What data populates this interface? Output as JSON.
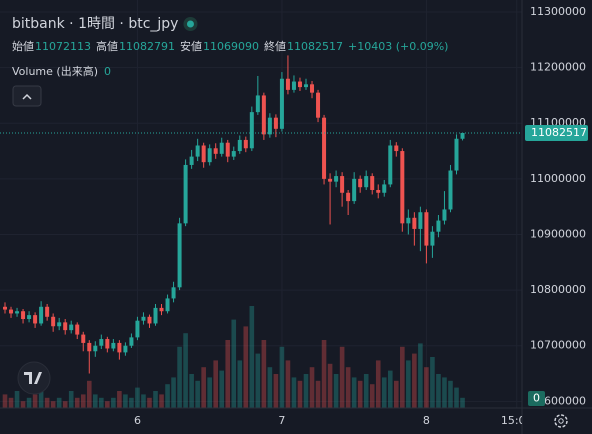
{
  "chart_data": {
    "type": "candlestick",
    "title": "bitbank · 1時間 · btc_jpy",
    "ohlc_labels": [
      "始値",
      "高値",
      "安値",
      "終値"
    ],
    "change_label": "+10403 (+0.09%)",
    "volume_label": "Volume (出来高)",
    "volume_value": 0,
    "up_color": "#26a69a",
    "down_color": "#ef5350",
    "grid": true,
    "ylim": [
      10588000,
      11321600
    ],
    "yticks": [
      10600000,
      10700000,
      10800000,
      10900000,
      11000000,
      11100000,
      11200000,
      11300000
    ],
    "categories": [
      null,
      null,
      null,
      null,
      null,
      null,
      null,
      null,
      null,
      null,
      null,
      null,
      null,
      null,
      null,
      null,
      null,
      null,
      null,
      null,
      null,
      null,
      "6",
      null,
      null,
      null,
      null,
      null,
      null,
      null,
      null,
      null,
      null,
      null,
      null,
      null,
      null,
      null,
      null,
      null,
      null,
      null,
      null,
      null,
      null,
      null,
      "7",
      null,
      null,
      null,
      null,
      null,
      null,
      null,
      null,
      null,
      null,
      null,
      null,
      null,
      null,
      null,
      null,
      null,
      null,
      null,
      null,
      null,
      null,
      null,
      "8",
      null,
      null,
      null,
      null,
      null,
      null,
      null,
      null,
      null,
      null,
      null,
      null,
      null,
      null,
      "15:00"
    ],
    "open": [
      10770000,
      10765000,
      10758000,
      10762000,
      10748000,
      10755000,
      10740000,
      10770000,
      10752000,
      10735000,
      10742000,
      10728000,
      10738000,
      10720000,
      10705000,
      10690000,
      10700000,
      10712000,
      10695000,
      10705000,
      10688000,
      10700000,
      10715000,
      10745000,
      10752000,
      10740000,
      10768000,
      10762000,
      10785000,
      10805000,
      10920000,
      11025000,
      11040000,
      11060000,
      11030000,
      11055000,
      11045000,
      11065000,
      11040000,
      11050000,
      11070000,
      11055000,
      11120000,
      11150000,
      11080000,
      11110000,
      11090000,
      11180000,
      11160000,
      11175000,
      11165000,
      11170000,
      11155000,
      11110000,
      11000000,
      10995000,
      11005000,
      10975000,
      10960000,
      11000000,
      10985000,
      11005000,
      10980000,
      10975000,
      10990000,
      11060000,
      11050000,
      10920000,
      10930000,
      10910000,
      10940000,
      10880000,
      10905000,
      10925000,
      10945000,
      11015000,
      11072113,
      null,
      null,
      null,
      null,
      null,
      null,
      null,
      null,
      null
    ],
    "high": [
      10778000,
      10770000,
      10768000,
      10766000,
      10762000,
      10760000,
      10780000,
      10775000,
      10758000,
      10750000,
      10748000,
      10745000,
      10742000,
      10725000,
      10710000,
      10708000,
      10720000,
      10716000,
      10712000,
      10710000,
      10706000,
      10722000,
      10752000,
      10760000,
      10756000,
      10775000,
      10775000,
      10792000,
      10815000,
      10930000,
      11035000,
      11052000,
      11072000,
      11065000,
      11062000,
      11064000,
      11074000,
      11070000,
      11058000,
      11078000,
      11076000,
      11130000,
      11185000,
      11155000,
      11118000,
      11116000,
      11192000,
      11222000,
      11186000,
      11182000,
      11180000,
      11176000,
      11160000,
      11115000,
      11010000,
      11015000,
      11012000,
      10980000,
      11012000,
      11006000,
      11015000,
      11010000,
      10990000,
      10998000,
      11070000,
      11066000,
      11055000,
      10945000,
      10940000,
      10950000,
      10945000,
      10915000,
      10935000,
      10978000,
      11025000,
      11080000,
      11082791,
      null,
      null,
      null,
      null,
      null,
      null,
      null,
      null,
      null
    ],
    "low": [
      10758000,
      10750000,
      10752000,
      10740000,
      10742000,
      10732000,
      10736000,
      10745000,
      10725000,
      10728000,
      10720000,
      10722000,
      10712000,
      10690000,
      10650000,
      10680000,
      10694000,
      10688000,
      10690000,
      10675000,
      10682000,
      10696000,
      10710000,
      10738000,
      10732000,
      10736000,
      10755000,
      10758000,
      10778000,
      10800000,
      10915000,
      11018000,
      11032000,
      11020000,
      11024000,
      11036000,
      11040000,
      11030000,
      11034000,
      11045000,
      11048000,
      11050000,
      11115000,
      11070000,
      11074000,
      11075000,
      11085000,
      11152000,
      11155000,
      11158000,
      11160000,
      11145000,
      11102000,
      10990000,
      10918000,
      10985000,
      10950000,
      10935000,
      10955000,
      10975000,
      10980000,
      10972000,
      10965000,
      10968000,
      10985000,
      11040000,
      10905000,
      10900000,
      10880000,
      10870000,
      10848000,
      10858000,
      10895000,
      10918000,
      10940000,
      11008000,
      11069090,
      null,
      null,
      null,
      null,
      null,
      null,
      null,
      null,
      null
    ],
    "close": [
      10765000,
      10758000,
      10762000,
      10748000,
      10755000,
      10740000,
      10770000,
      10752000,
      10735000,
      10742000,
      10728000,
      10738000,
      10720000,
      10705000,
      10690000,
      10700000,
      10712000,
      10695000,
      10705000,
      10688000,
      10700000,
      10715000,
      10745000,
      10752000,
      10740000,
      10768000,
      10762000,
      10785000,
      10805000,
      10920000,
      11025000,
      11040000,
      11060000,
      11030000,
      11055000,
      11045000,
      11065000,
      11040000,
      11050000,
      11070000,
      11055000,
      11120000,
      11150000,
      11080000,
      11110000,
      11090000,
      11180000,
      11160000,
      11175000,
      11165000,
      11170000,
      11155000,
      11110000,
      11000000,
      10995000,
      11005000,
      10975000,
      10960000,
      11000000,
      10985000,
      11005000,
      10980000,
      10975000,
      10990000,
      11060000,
      11050000,
      10920000,
      10930000,
      10910000,
      10940000,
      10880000,
      10905000,
      10925000,
      10945000,
      11015000,
      11072114,
      11082517,
      null,
      null,
      null,
      null,
      null,
      null,
      null,
      null,
      null
    ],
    "volume": [
      4,
      3,
      5,
      2,
      3,
      4,
      6,
      3,
      2,
      3,
      2,
      5,
      3,
      4,
      8,
      4,
      3,
      2,
      3,
      5,
      4,
      3,
      6,
      4,
      3,
      5,
      4,
      7,
      9,
      18,
      22,
      10,
      8,
      12,
      9,
      14,
      11,
      20,
      26,
      14,
      24,
      30,
      16,
      20,
      12,
      10,
      18,
      14,
      9,
      8,
      10,
      12,
      8,
      20,
      13,
      10,
      18,
      12,
      9,
      8,
      10,
      7,
      14,
      9,
      11,
      8,
      18,
      14,
      16,
      19,
      12,
      15,
      10,
      9,
      8,
      6,
      3,
      null,
      null,
      null,
      null,
      null,
      null,
      null,
      null,
      null
    ]
  }
}
